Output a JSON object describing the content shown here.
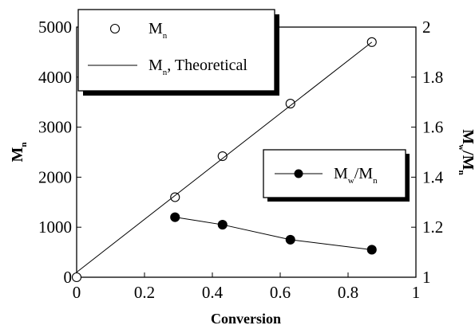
{
  "chart_data": {
    "type": "scatter",
    "xlabel": "Conversion",
    "ylabel": "M",
    "ylabel_sub": "n",
    "y2label_parts": [
      "M",
      "w",
      "/M",
      "n"
    ],
    "xlim": [
      0,
      1
    ],
    "ylim": [
      0,
      5000
    ],
    "y2lim": [
      1,
      2
    ],
    "x_ticks": [
      "0",
      "0.2",
      "0.4",
      "0.6",
      "0.8",
      "1"
    ],
    "y_ticks": [
      "0",
      "1000",
      "2000",
      "3000",
      "4000",
      "5000"
    ],
    "y2_ticks": [
      "1",
      "1.2",
      "1.4",
      "1.6",
      "1.8",
      "2"
    ],
    "series": [
      {
        "name": "Mn",
        "legend_text": "M",
        "legend_sub": "n",
        "axis": "left",
        "marker": "open-circle",
        "x": [
          0.0,
          0.29,
          0.43,
          0.63,
          0.87
        ],
        "y": [
          0,
          1600,
          2420,
          3470,
          4700
        ]
      },
      {
        "name": "Mn, Theoretical",
        "legend_text": "M",
        "legend_sub": "n",
        "legend_tail": ", Theoretical",
        "axis": "left",
        "marker": "none",
        "x": [
          0.0,
          0.87
        ],
        "y": [
          100,
          4700
        ]
      },
      {
        "name": "Mw/Mn",
        "legend_parts": [
          "M",
          "w",
          "/M",
          "n"
        ],
        "axis": "right",
        "marker": "filled-circle",
        "x": [
          0.29,
          0.43,
          0.63,
          0.87
        ],
        "y": [
          1.24,
          1.21,
          1.15,
          1.11
        ]
      }
    ]
  }
}
